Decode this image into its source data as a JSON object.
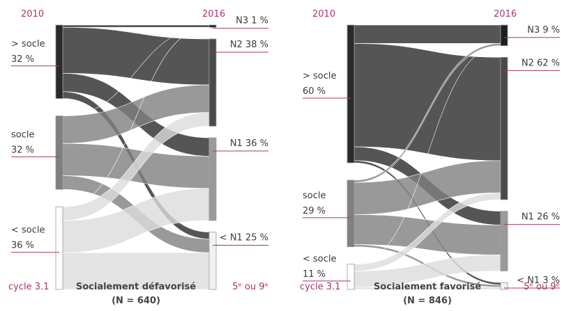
{
  "chart_data": [
    {
      "type": "sankey",
      "left_title": "2010",
      "right_title": "2016",
      "footer_left": "cycle 3.1",
      "title": "Socialement défavorisé",
      "subtitle": "(N = 640)",
      "footer_right": "5ᵉ ou 9ᵉ",
      "left_nodes": [
        {
          "label": "> socle",
          "value": 32,
          "value_label": "32 %",
          "color": "#2a2a2a"
        },
        {
          "label": "socle",
          "value": 32,
          "value_label": "32 %",
          "color": "#808080"
        },
        {
          "label": "< socle",
          "value": 36,
          "value_label": "36 %",
          "color": "#ffffff"
        }
      ],
      "right_nodes": [
        {
          "label": "N3",
          "value": 1,
          "value_label": "1 %",
          "color": "#1e1e1e"
        },
        {
          "label": "N2",
          "value": 38,
          "value_label": "38 %",
          "color": "#4a4a4a"
        },
        {
          "label": "N1",
          "value": 36,
          "value_label": "36 %",
          "color": "#9a9a9a"
        },
        {
          "label": "< N1",
          "value": 25,
          "value_label": "25 %",
          "color": "#f2f2f2"
        }
      ],
      "flows": [
        [
          1,
          20,
          8,
          3
        ],
        [
          0,
          12,
          14,
          6
        ],
        [
          0,
          6,
          14,
          16
        ]
      ]
    },
    {
      "type": "sankey",
      "left_title": "2010",
      "right_title": "2016",
      "footer_left": "cycle 3.1",
      "title": "Socialement favorisé",
      "subtitle": "(N = 846)",
      "footer_right": "5ᵉ ou 9ᵉ",
      "left_nodes": [
        {
          "label": "> socle",
          "value": 60,
          "value_label": "60 %",
          "color": "#2a2a2a"
        },
        {
          "label": "socle",
          "value": 29,
          "value_label": "29 %",
          "color": "#808080"
        },
        {
          "label": "< socle",
          "value": 11,
          "value_label": "11 %",
          "color": "#ffffff"
        }
      ],
      "right_nodes": [
        {
          "label": "N3",
          "value": 9,
          "value_label": "9 %",
          "color": "#1e1e1e"
        },
        {
          "label": "N2",
          "value": 62,
          "value_label": "62 %",
          "color": "#4a4a4a"
        },
        {
          "label": "N1",
          "value": 26,
          "value_label": "26 %",
          "color": "#9a9a9a"
        },
        {
          "label": "< N1",
          "value": 3,
          "value_label": "3 %",
          "color": "#f2f2f2"
        }
      ],
      "flows": [
        [
          8,
          45,
          6,
          1
        ],
        [
          1,
          14,
          13,
          1
        ],
        [
          0,
          3,
          7,
          1
        ]
      ]
    }
  ]
}
